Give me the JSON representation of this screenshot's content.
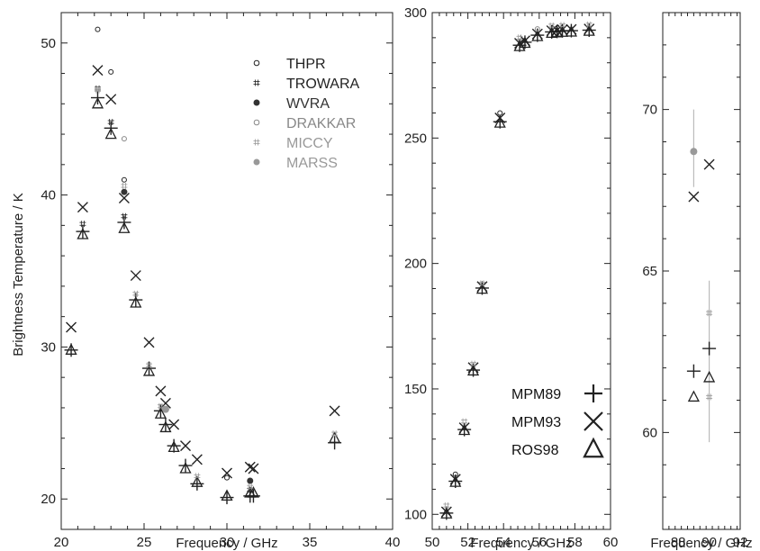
{
  "colors": {
    "THPR": "#222222",
    "TROWARA": "#222222",
    "WVRA": "#333333",
    "DRAKKAR": "#888888",
    "MICCY": "#999999",
    "MARSS": "#999999",
    "model": "#222222",
    "errorbar": "#bbbbbb"
  },
  "ylabel": "Brightness Temperature / K",
  "instrument_legend": [
    {
      "name": "THPR",
      "marker": "open-circle"
    },
    {
      "name": "TROWARA",
      "marker": "hash"
    },
    {
      "name": "WVRA",
      "marker": "filled-circle"
    },
    {
      "name": "DRAKKAR",
      "marker": "open-circle"
    },
    {
      "name": "MICCY",
      "marker": "hash"
    },
    {
      "name": "MARSS",
      "marker": "filled-circle"
    }
  ],
  "model_legend": [
    {
      "name": "MPM89",
      "marker": "plus"
    },
    {
      "name": "MPM93",
      "marker": "cross"
    },
    {
      "name": "ROS98",
      "marker": "triangle"
    }
  ],
  "chart_data": [
    {
      "type": "scatter",
      "panel": "left",
      "xlabel": "Frequency / GHz",
      "ylabel": "Brightness Temperature / K",
      "xlim": [
        20,
        40
      ],
      "ylim": [
        18,
        52
      ],
      "xticks": [
        20,
        25,
        30,
        35,
        40
      ],
      "yticks": [
        20,
        30,
        40,
        50
      ],
      "series": [
        {
          "name": "MPM89",
          "points": [
            [
              20.6,
              29.8
            ],
            [
              21.3,
              37.6
            ],
            [
              22.2,
              46.4
            ],
            [
              23.0,
              44.4
            ],
            [
              23.8,
              38.2
            ],
            [
              24.5,
              33.1
            ],
            [
              25.3,
              28.6
            ],
            [
              26.0,
              25.8
            ],
            [
              26.3,
              24.9
            ],
            [
              26.8,
              23.5
            ],
            [
              27.5,
              22.2
            ],
            [
              28.2,
              21.0
            ],
            [
              30.0,
              20.1
            ],
            [
              31.4,
              20.2
            ],
            [
              31.6,
              20.2
            ],
            [
              36.5,
              23.7
            ]
          ]
        },
        {
          "name": "MPM93",
          "points": [
            [
              20.6,
              31.3
            ],
            [
              21.3,
              39.2
            ],
            [
              22.2,
              48.2
            ],
            [
              23.0,
              46.3
            ],
            [
              23.8,
              39.8
            ],
            [
              24.5,
              34.7
            ],
            [
              25.3,
              30.3
            ],
            [
              26.0,
              27.1
            ],
            [
              26.3,
              26.3
            ],
            [
              26.8,
              24.9
            ],
            [
              27.5,
              23.5
            ],
            [
              28.2,
              22.6
            ],
            [
              30.0,
              21.7
            ],
            [
              31.4,
              22.1
            ],
            [
              31.6,
              22.0
            ],
            [
              36.5,
              25.8
            ]
          ]
        },
        {
          "name": "ROS98",
          "points": [
            [
              20.6,
              29.8
            ],
            [
              21.3,
              37.4
            ],
            [
              22.2,
              46.0
            ],
            [
              23.0,
              44.0
            ],
            [
              23.8,
              37.8
            ],
            [
              24.5,
              32.9
            ],
            [
              25.3,
              28.4
            ],
            [
              26.0,
              25.6
            ],
            [
              26.3,
              24.7
            ],
            [
              26.8,
              23.4
            ],
            [
              27.5,
              22.0
            ],
            [
              28.2,
              21.1
            ],
            [
              30.0,
              20.2
            ],
            [
              31.4,
              20.4
            ],
            [
              31.6,
              20.4
            ],
            [
              36.5,
              24.0
            ]
          ]
        },
        {
          "name": "THPR",
          "points": [
            [
              22.2,
              50.9
            ],
            [
              23.0,
              48.1
            ],
            [
              23.8,
              41.0
            ],
            [
              30.0,
              21.4
            ]
          ]
        },
        {
          "name": "TROWARA",
          "points": [
            [
              21.3,
              38.1
            ],
            [
              22.2,
              47.0
            ],
            [
              23.0,
              44.8
            ],
            [
              23.8,
              38.6
            ],
            [
              31.4,
              20.6
            ]
          ]
        },
        {
          "name": "WVRA",
          "points": [
            [
              23.8,
              40.2
            ],
            [
              31.4,
              21.2
            ]
          ]
        },
        {
          "name": "DRAKKAR",
          "points": [
            [
              23.8,
              43.7
            ]
          ]
        },
        {
          "name": "MICCY",
          "points": [
            [
              22.2,
              46.9
            ],
            [
              23.8,
              40.6
            ],
            [
              24.5,
              33.5
            ],
            [
              25.3,
              28.8
            ],
            [
              26.0,
              26.1
            ],
            [
              28.2,
              21.5
            ],
            [
              31.4,
              20.8
            ],
            [
              36.5,
              24.3
            ]
          ]
        },
        {
          "name": "MARSS",
          "points": [
            [
              26.3,
              25.9
            ]
          ]
        }
      ]
    },
    {
      "type": "scatter",
      "panel": "middle",
      "xlabel": "Frequency / GHz",
      "xlim": [
        50,
        60
      ],
      "ylim": [
        94,
        300
      ],
      "xticks": [
        50,
        52,
        54,
        56,
        58,
        60
      ],
      "yticks": [
        100,
        150,
        200,
        250,
        300
      ],
      "series": [
        {
          "name": "MPM89",
          "points": [
            [
              50.8,
              100.5
            ],
            [
              51.3,
              113.2
            ],
            [
              51.8,
              133.8
            ],
            [
              52.3,
              157.5
            ],
            [
              52.8,
              190.2
            ],
            [
              53.8,
              256.5
            ],
            [
              54.9,
              287.0
            ],
            [
              55.2,
              288.2
            ],
            [
              55.9,
              291.0
            ],
            [
              56.7,
              292.3
            ],
            [
              57.0,
              292.5
            ],
            [
              57.3,
              292.7
            ],
            [
              57.8,
              292.8
            ],
            [
              58.8,
              293.0
            ]
          ]
        },
        {
          "name": "MPM93",
          "points": [
            [
              50.8,
              101.0
            ],
            [
              51.3,
              114.0
            ],
            [
              51.8,
              134.5
            ],
            [
              52.3,
              158.5
            ],
            [
              52.8,
              190.8
            ],
            [
              53.8,
              258.0
            ],
            [
              54.9,
              287.8
            ],
            [
              55.2,
              288.8
            ],
            [
              55.9,
              291.5
            ],
            [
              56.7,
              292.8
            ],
            [
              57.0,
              293.0
            ],
            [
              57.3,
              293.2
            ],
            [
              57.8,
              293.3
            ],
            [
              58.8,
              293.5
            ]
          ]
        },
        {
          "name": "ROS98",
          "points": [
            [
              50.8,
              100.2
            ],
            [
              51.3,
              112.8
            ],
            [
              51.8,
              133.5
            ],
            [
              52.3,
              157.2
            ],
            [
              52.8,
              189.8
            ],
            [
              53.8,
              256.0
            ],
            [
              54.9,
              286.5
            ],
            [
              55.2,
              287.8
            ],
            [
              55.9,
              290.5
            ],
            [
              56.7,
              291.8
            ],
            [
              57.0,
              292.0
            ],
            [
              57.3,
              292.2
            ],
            [
              57.8,
              292.3
            ],
            [
              58.8,
              292.6
            ]
          ]
        },
        {
          "name": "THPR",
          "points": [
            [
              51.3,
              116.0
            ],
            [
              53.8,
              260.0
            ]
          ]
        },
        {
          "name": "TROWARA",
          "points": []
        },
        {
          "name": "WVRA",
          "points": []
        },
        {
          "name": "DRAKKAR",
          "points": [
            [
              55.9,
              293.5
            ]
          ]
        },
        {
          "name": "MICCY",
          "points": [
            [
              50.8,
              103.5
            ],
            [
              51.8,
              137.0
            ],
            [
              52.3,
              160.0
            ],
            [
              52.8,
              192.0
            ],
            [
              54.9,
              290.0
            ],
            [
              56.7,
              294.8
            ],
            [
              57.3,
              295.0
            ],
            [
              58.8,
              295.2
            ]
          ]
        },
        {
          "name": "MARSS",
          "points": []
        }
      ]
    },
    {
      "type": "scatter",
      "panel": "right",
      "xlabel": "Frequency / GHz",
      "xlim": [
        87,
        92
      ],
      "ylim": [
        57,
        73
      ],
      "xticks": [
        88,
        90,
        92
      ],
      "yticks": [
        60,
        65,
        70
      ],
      "series": [
        {
          "name": "MPM89",
          "points": [
            [
              89.0,
              61.9
            ],
            [
              90.0,
              62.6
            ]
          ]
        },
        {
          "name": "MPM93",
          "points": [
            [
              89.0,
              67.3
            ],
            [
              90.0,
              68.3
            ]
          ]
        },
        {
          "name": "ROS98",
          "points": [
            [
              89.0,
              61.1
            ],
            [
              90.0,
              61.7
            ]
          ]
        },
        {
          "name": "THPR",
          "points": []
        },
        {
          "name": "TROWARA",
          "points": []
        },
        {
          "name": "WVRA",
          "points": []
        },
        {
          "name": "DRAKKAR",
          "points": []
        },
        {
          "name": "MICCY",
          "points": [
            [
              90.0,
              63.7
            ],
            [
              90.0,
              61.1
            ]
          ]
        },
        {
          "name": "MARSS",
          "points": [
            [
              89.0,
              68.7
            ]
          ]
        }
      ],
      "errorbars": [
        {
          "x": 89.0,
          "ylow": 67.6,
          "yhigh": 70.0
        },
        {
          "x": 90.0,
          "ylow": 59.7,
          "yhigh": 64.7
        }
      ]
    }
  ]
}
